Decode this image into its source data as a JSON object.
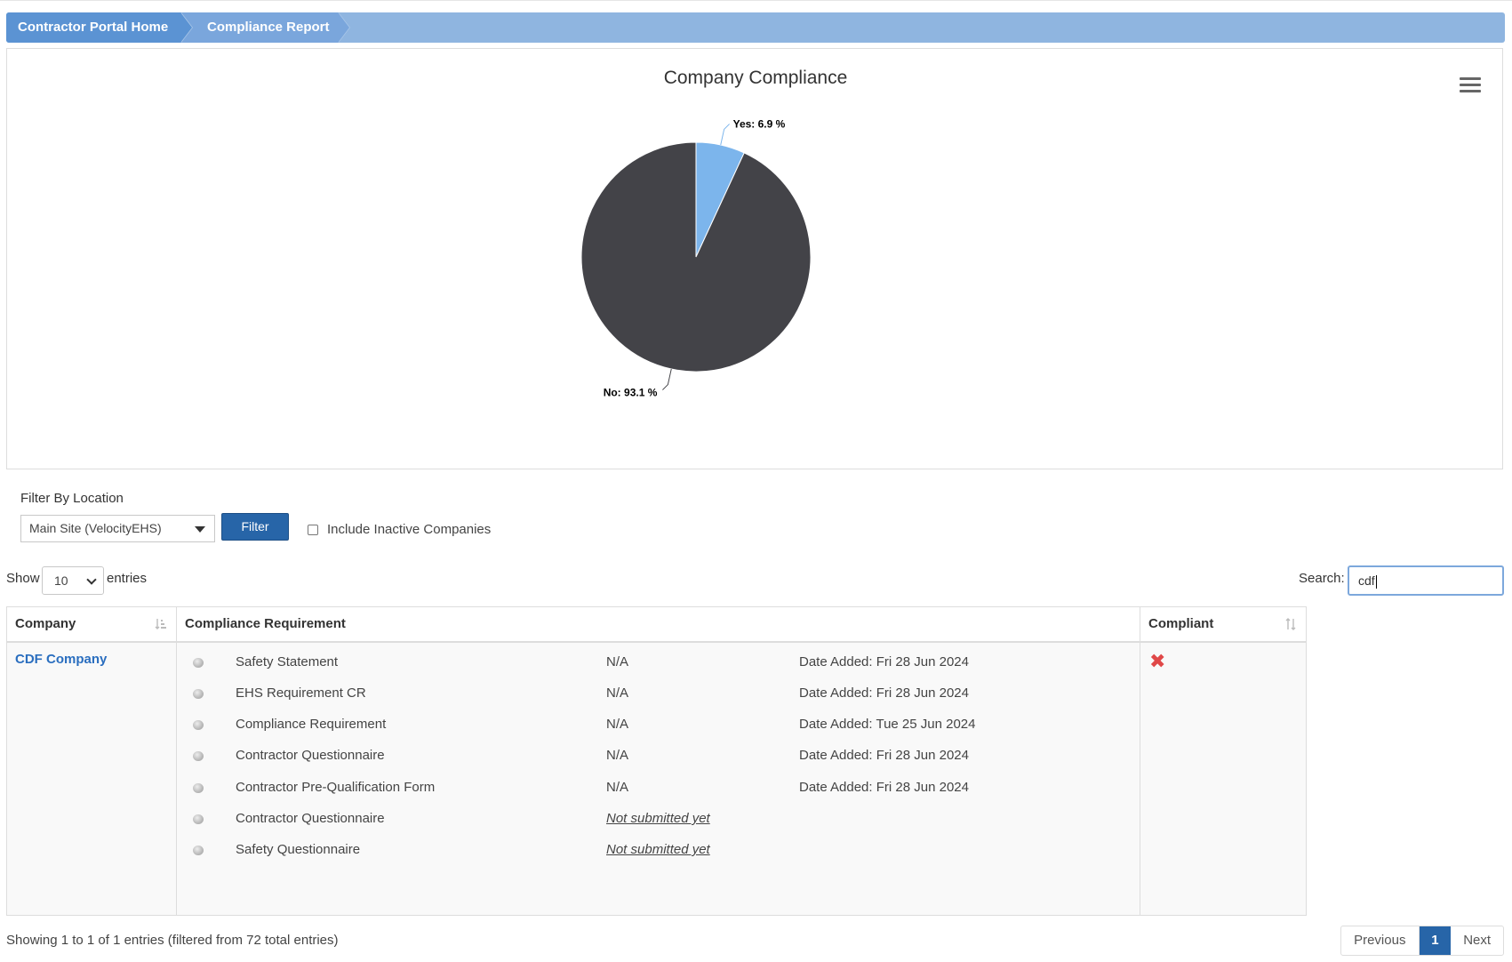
{
  "breadcrumb": {
    "items": [
      "Contractor Portal Home",
      "Compliance Report"
    ]
  },
  "chart_data": {
    "type": "pie",
    "title": "Company Compliance",
    "categories": [
      "Yes",
      "No"
    ],
    "values": [
      6.9,
      93.1
    ],
    "unit": "%",
    "colors": [
      "#7cb5ec",
      "#434348"
    ],
    "data_labels": [
      "Yes: 6.9 %",
      "No: 93.1 %"
    ]
  },
  "filter": {
    "label": "Filter By Location",
    "location_value": "Main Site (VelocityEHS)",
    "button_label": "Filter",
    "inactive_label": "Include Inactive Companies",
    "inactive_checked": false
  },
  "table_controls": {
    "show_label": "Show",
    "entries_value": "10",
    "entries_label": "entries",
    "search_label": "Search:",
    "search_value": "cdf"
  },
  "table": {
    "headers": [
      "Company",
      "Compliance Requirement",
      "Compliant"
    ],
    "rows": [
      {
        "company": "CDF Company",
        "compliant": false,
        "compliant_icon": "x-icon",
        "requirements": [
          {
            "name": "Safety Statement",
            "status": "N/A",
            "date": "Date Added: Fri 28 Jun 2024"
          },
          {
            "name": "EHS Requirement CR",
            "status": "N/A",
            "date": "Date Added: Fri 28 Jun 2024"
          },
          {
            "name": "Compliance Requirement",
            "status": "N/A",
            "date": "Date Added: Tue 25 Jun 2024"
          },
          {
            "name": "Contractor Questionnaire",
            "status": "N/A",
            "date": "Date Added: Fri 28 Jun 2024"
          },
          {
            "name": "Contractor Pre-Qualification Form",
            "status": "N/A",
            "date": "Date Added: Fri 28 Jun 2024"
          },
          {
            "name": "Contractor Questionnaire",
            "status": "Not submitted yet",
            "date": ""
          },
          {
            "name": "Safety Questionnaire",
            "status": "Not submitted yet",
            "date": ""
          }
        ]
      }
    ]
  },
  "footer": {
    "info": "Showing 1 to 1 of 1 entries (filtered from 72 total entries)",
    "pagination": {
      "previous": "Previous",
      "current": "1",
      "next": "Next"
    }
  }
}
